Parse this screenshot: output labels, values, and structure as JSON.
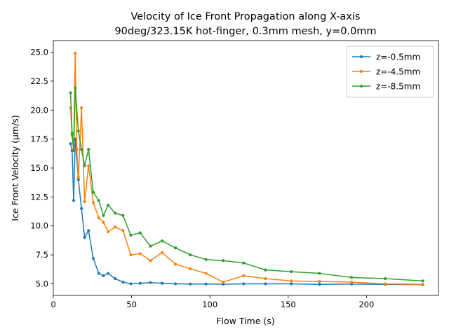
{
  "chart_data": {
    "type": "line",
    "title": "Velocity of Ice Front Propagation along X-axis",
    "subtitle": "90deg/323.15K hot-finger, 0.3mm mesh, y=0.0mm",
    "xlabel": "Flow Time (s)",
    "ylabel": "Ice Front Velocity (μm/s)",
    "xlim": [
      0,
      246
    ],
    "ylim": [
      4.0,
      26.0
    ],
    "xticks": [
      0,
      50,
      100,
      150,
      200
    ],
    "yticks": [
      5.0,
      7.5,
      10.0,
      12.5,
      15.0,
      17.5,
      20.0,
      22.5,
      25.0
    ],
    "grid": false,
    "legend_position": "top-right",
    "series": [
      {
        "name": "z=-0.5mm",
        "color": "#1f77b4",
        "x": [
          11,
          12,
          13,
          14,
          16,
          18,
          20,
          22.5,
          25.5,
          29,
          32,
          35,
          39.5,
          44.5,
          49.5,
          55.5,
          62,
          69.5,
          78,
          87.5,
          97.5,
          108.5,
          121.5,
          135.5,
          152,
          170,
          190.5,
          212,
          236
        ],
        "y": [
          17.1,
          16.5,
          12.2,
          17.5,
          14.0,
          11.5,
          9.0,
          9.6,
          7.2,
          5.9,
          5.7,
          5.9,
          5.45,
          5.15,
          5.0,
          5.05,
          5.1,
          5.05,
          5.0,
          4.98,
          4.98,
          4.97,
          5.0,
          5.0,
          5.0,
          4.95,
          4.98,
          4.95,
          4.92
        ]
      },
      {
        "name": "z=-4.5mm",
        "color": "#ff7f0e",
        "x": [
          11,
          12,
          13,
          14,
          15,
          16,
          18,
          20,
          22.5,
          25.5,
          29,
          32,
          35,
          39.5,
          44.5,
          49.5,
          55.5,
          62,
          69.5,
          78,
          87.5,
          97.5,
          108.5,
          121.5,
          135.5,
          152,
          170,
          190.5,
          212,
          236
        ],
        "y": [
          20.2,
          17.8,
          16.6,
          24.9,
          16.6,
          14.2,
          20.2,
          12.1,
          15.2,
          12.0,
          10.7,
          10.3,
          9.5,
          9.9,
          9.6,
          7.5,
          7.6,
          7.0,
          7.7,
          6.7,
          6.3,
          5.9,
          5.15,
          5.7,
          5.45,
          5.25,
          5.2,
          5.15,
          5.0,
          4.95
        ]
      },
      {
        "name": "z=-8.5mm",
        "color": "#2ca02c",
        "x": [
          11,
          12,
          13,
          14,
          16,
          18,
          20,
          22.5,
          25.5,
          29,
          32,
          35,
          39.5,
          44.5,
          49.5,
          55.5,
          62,
          69.5,
          78,
          87.5,
          97.5,
          108.5,
          121.5,
          135.5,
          152,
          170,
          190.5,
          212,
          236
        ],
        "y": [
          21.5,
          18.0,
          16.5,
          21.9,
          18.2,
          16.6,
          15.2,
          16.6,
          12.9,
          12.2,
          10.9,
          11.8,
          11.1,
          10.9,
          9.2,
          9.4,
          8.25,
          8.7,
          8.1,
          7.5,
          7.1,
          7.0,
          6.8,
          6.2,
          6.05,
          5.9,
          5.55,
          5.45,
          5.25
        ]
      }
    ]
  }
}
